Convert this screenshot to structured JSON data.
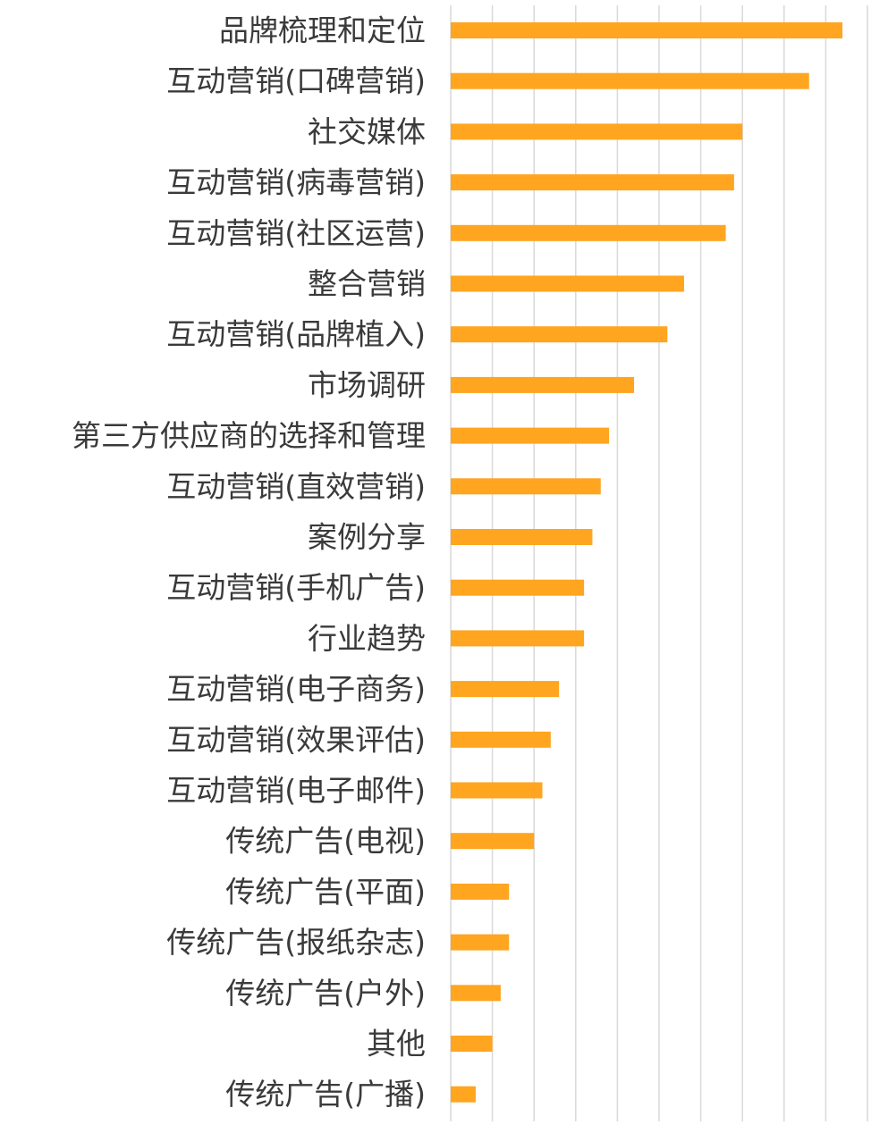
{
  "chart_data": {
    "type": "bar",
    "orientation": "horizontal",
    "title": "",
    "xlabel": "",
    "ylabel": "",
    "categories": [
      "品牌梳理和定位",
      "互动营销(口碑营销)",
      "社交媒体",
      "互动营销(病毒营销)",
      "互动营销(社区运营)",
      "整合营销",
      "互动营销(品牌植入)",
      "市场调研",
      "第三方供应商的选择和管理",
      "互动营销(直效营销)",
      "案例分享",
      "互动营销(手机广告)",
      "行业趋势",
      "互动营销(电子商务)",
      "互动营销(效果评估)",
      "互动营销(电子邮件)",
      "传统广告(电视)",
      "传统广告(平面)",
      "传统广告(报纸杂志)",
      "传统广告(户外)",
      "其他",
      "传统广告(广播)"
    ],
    "series": [
      {
        "values": [
          94,
          86,
          70,
          68,
          66,
          56,
          52,
          44,
          38,
          36,
          34,
          32,
          32,
          26,
          24,
          22,
          20,
          14,
          14,
          12,
          10,
          6
        ]
      }
    ],
    "xlim": [
      0,
      100
    ],
    "grid": true,
    "legend": "none",
    "bar_color": "#FFA51F",
    "grid_color": "#D9D9D9",
    "label_color": "#3A3A3A"
  }
}
